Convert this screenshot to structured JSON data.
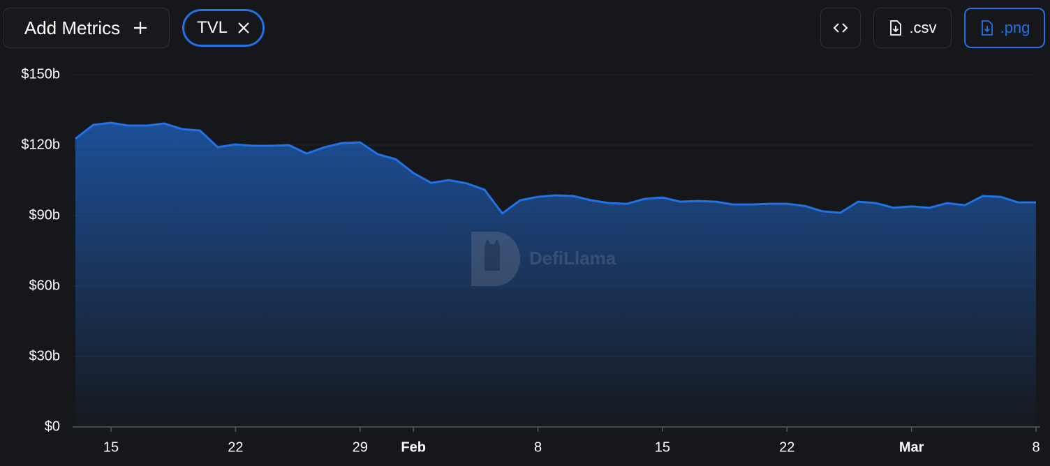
{
  "toolbar": {
    "add_metrics": "Add Metrics",
    "export_csv": ".csv",
    "export_png": ".png"
  },
  "watermark": "DefiLlama",
  "chart_data": {
    "type": "area",
    "x": [
      13,
      14,
      15,
      16,
      17,
      18,
      19,
      20,
      21,
      22,
      23,
      24,
      25,
      26,
      27,
      28,
      29,
      30,
      31,
      32,
      33,
      34,
      35,
      36,
      37,
      38,
      39,
      40,
      41,
      42,
      43,
      44,
      45,
      46,
      47,
      48,
      49,
      50,
      51,
      52,
      53,
      54,
      55,
      56,
      57,
      58,
      59,
      60,
      61,
      62,
      63,
      64,
      65,
      66,
      67
    ],
    "series": [
      {
        "name": "TVL",
        "color": "#2172e5",
        "values": [
          122.7,
          128.6,
          129.5,
          128.3,
          128.3,
          129.2,
          126.8,
          126.2,
          119.1,
          120.3,
          119.7,
          119.7,
          120.0,
          116.4,
          119.1,
          120.9,
          121.2,
          116.1,
          114.0,
          108.1,
          103.9,
          105.1,
          103.7,
          101.0,
          90.9,
          96.5,
          98.0,
          98.6,
          98.3,
          96.5,
          95.3,
          95.0,
          97.1,
          97.7,
          95.9,
          96.2,
          95.9,
          94.7,
          94.7,
          95.0,
          95.0,
          94.1,
          91.8,
          91.2,
          95.9,
          95.3,
          93.3,
          93.9,
          93.3,
          95.3,
          94.4,
          98.3,
          98.0,
          95.6,
          95.6
        ]
      }
    ],
    "xlim": [
      13,
      67
    ],
    "xticks": [
      15,
      22,
      29,
      {
        "value": 32,
        "label": "Feb"
      },
      {
        "value": 39,
        "label": "8"
      },
      {
        "value": 46,
        "label": "15"
      },
      {
        "value": 53,
        "label": "22"
      },
      {
        "value": 60,
        "label": "Mar"
      },
      {
        "value": 67,
        "label": "8"
      }
    ],
    "ylim": [
      0,
      150
    ],
    "yticks": [
      {
        "value": 0,
        "label": "$0"
      },
      {
        "value": 30,
        "label": "$30b"
      },
      {
        "value": 60,
        "label": "$60b"
      },
      {
        "value": 90,
        "label": "$90b"
      },
      {
        "value": 120,
        "label": "$120b"
      },
      {
        "value": 150,
        "label": "$150b"
      }
    ],
    "grid": true
  }
}
